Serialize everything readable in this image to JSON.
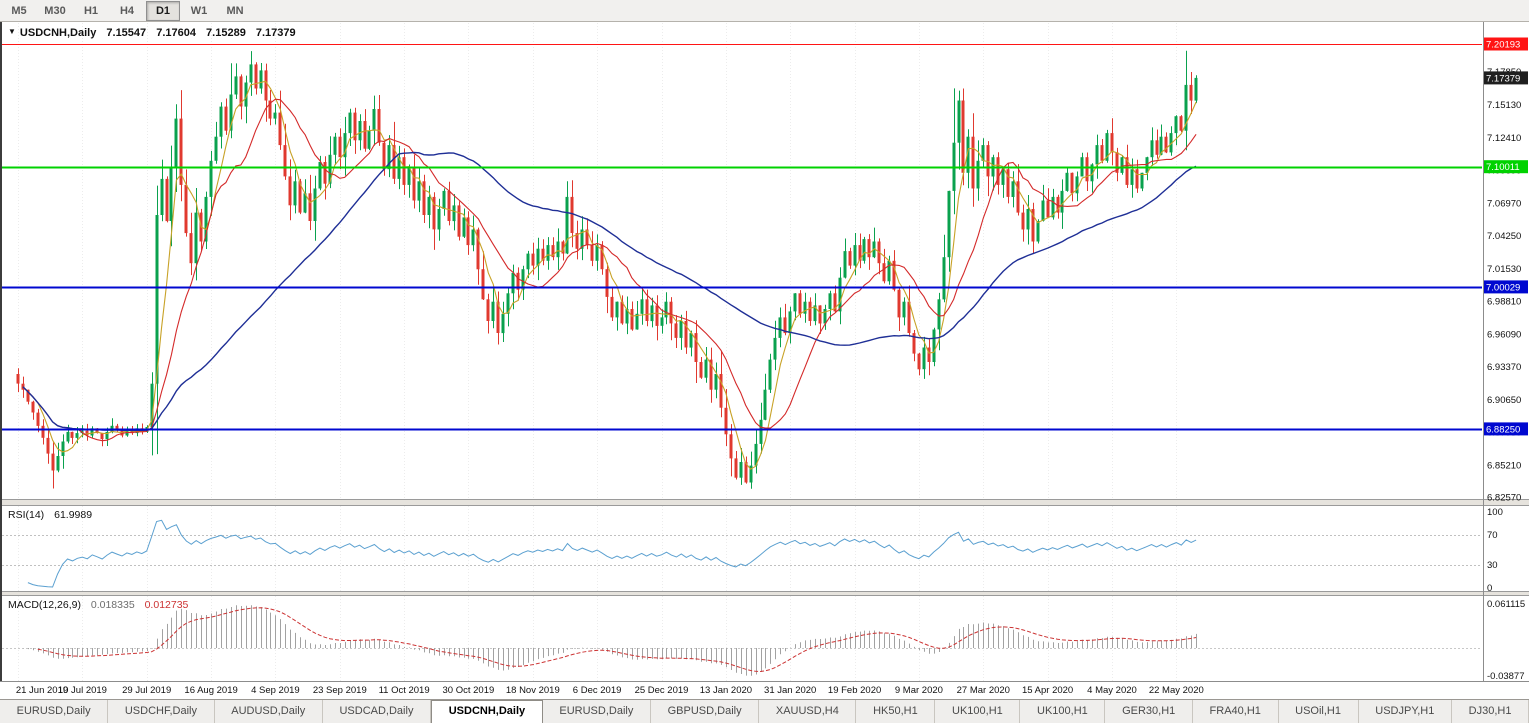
{
  "toolbar": {
    "timeframes": [
      "M5",
      "M30",
      "H1",
      "H4",
      "D1",
      "W1",
      "MN"
    ],
    "active": "D1"
  },
  "chart": {
    "symbol_period": "USDCNH,Daily",
    "ohlc": {
      "open": "7.15547",
      "high": "7.17604",
      "low": "7.15289",
      "close": "7.17379"
    }
  },
  "rsi": {
    "title": "RSI(14)",
    "value": "61.9989"
  },
  "macd": {
    "title": "MACD(12,26,9)",
    "value_macd": "0.018335",
    "value_signal": "0.012735"
  },
  "tabs": [
    {
      "label": "EURUSD,Daily"
    },
    {
      "label": "USDCHF,Daily"
    },
    {
      "label": "AUDUSD,Daily"
    },
    {
      "label": "USDCAD,Daily"
    },
    {
      "label": "USDCNH,Daily",
      "active": true
    },
    {
      "label": "EURUSD,Daily"
    },
    {
      "label": "GBPUSD,Daily"
    },
    {
      "label": "XAUUSD,H4"
    },
    {
      "label": "HK50,H1"
    },
    {
      "label": "UK100,H1"
    },
    {
      "label": "UK100,H1"
    },
    {
      "label": "GER30,H1"
    },
    {
      "label": "FRA40,H1"
    },
    {
      "label": "USOil,H1"
    },
    {
      "label": "USDJPY,H1"
    },
    {
      "label": "DJ30,H1"
    }
  ],
  "colors": {
    "candle_up": "#0aa14e",
    "candle_down": "#e0392f",
    "hline_red": "#ff1414",
    "hline_green": "#00d200",
    "hline_blue": "#0008d0",
    "current_price_bg": "#1f1f1f",
    "rsi_line": "#5ba0d0",
    "macd_histogram": "#a2a2a2",
    "macd_signal": "#cc3333",
    "ma_fast": "#c8a227",
    "ma_mid": "#d42a2a",
    "ma_slow": "#1f2f96"
  },
  "chart_data": {
    "type": "candlestick",
    "symbol": "USDCNH",
    "timeframe": "Daily",
    "current_bar": {
      "open": 7.15547,
      "high": 7.17604,
      "low": 7.15289,
      "close": 7.17379
    },
    "x_labels": [
      "21 Jun 2019",
      "10 Jul 2019",
      "29 Jul 2019",
      "16 Aug 2019",
      "4 Sep 2019",
      "23 Sep 2019",
      "11 Oct 2019",
      "30 Oct 2019",
      "18 Nov 2019",
      "6 Dec 2019",
      "25 Dec 2019",
      "13 Jan 2020",
      "31 Jan 2020",
      "19 Feb 2020",
      "9 Mar 2020",
      "27 Mar 2020",
      "15 Apr 2020",
      "4 May 2020",
      "22 May 2020"
    ],
    "x_label_step": 13,
    "y_labels": [
      "7.17850",
      "7.15130",
      "7.12410",
      "7.09690",
      "7.06970",
      "7.04250",
      "7.01530",
      "6.98810",
      "6.96090",
      "6.93370",
      "6.90650",
      "6.87930",
      "6.85210",
      "6.82570"
    ],
    "hlines": [
      {
        "price": 7.20193,
        "label": "7.20193",
        "color": "#ff1414",
        "width": 1
      },
      {
        "price": 7.10011,
        "label": "7.10011",
        "color": "#00d200",
        "width": 2
      },
      {
        "price": 7.00029,
        "label": "7.00029",
        "color": "#0008d0",
        "width": 2
      },
      {
        "price": 6.8825,
        "label": "6.88250",
        "color": "#0008d0",
        "width": 2
      }
    ],
    "current_price": {
      "price": 7.17379,
      "label": "7.17379"
    },
    "open_first": 6.928,
    "closes": [
      6.92,
      6.915,
      6.905,
      6.896,
      6.885,
      6.875,
      6.862,
      6.848,
      6.86,
      6.872,
      6.88,
      6.875,
      6.879,
      6.881,
      6.877,
      6.883,
      6.879,
      6.874,
      6.88,
      6.885,
      6.881,
      6.877,
      6.882,
      6.879,
      6.883,
      6.88,
      6.884,
      6.92,
      7.06,
      7.09,
      7.055,
      7.1,
      7.14,
      7.085,
      7.045,
      7.02,
      7.062,
      7.038,
      7.075,
      7.105,
      7.125,
      7.15,
      7.13,
      7.16,
      7.175,
      7.15,
      7.17,
      7.185,
      7.165,
      7.18,
      7.155,
      7.14,
      7.145,
      7.118,
      7.092,
      7.068,
      7.088,
      7.062,
      7.078,
      7.055,
      7.082,
      7.104,
      7.086,
      7.11,
      7.125,
      7.108,
      7.128,
      7.145,
      7.122,
      7.138,
      7.115,
      7.13,
      7.148,
      7.12,
      7.098,
      7.118,
      7.09,
      7.108,
      7.085,
      7.1,
      7.072,
      7.088,
      7.06,
      7.075,
      7.048,
      7.065,
      7.08,
      7.055,
      7.068,
      7.042,
      7.058,
      7.035,
      7.048,
      7.015,
      6.99,
      6.972,
      6.988,
      6.962,
      6.978,
      6.995,
      7.012,
      6.998,
      7.015,
      7.028,
      7.018,
      7.032,
      7.022,
      7.035,
      7.025,
      7.038,
      7.028,
      7.075,
      7.045,
      7.032,
      7.048,
      7.035,
      7.022,
      7.035,
      7.015,
      6.992,
      6.975,
      6.988,
      6.97,
      6.982,
      6.965,
      6.978,
      6.99,
      6.972,
      6.985,
      6.968,
      6.975,
      6.988,
      6.97,
      6.958,
      6.972,
      6.95,
      6.962,
      6.938,
      6.925,
      6.94,
      6.915,
      6.928,
      6.9,
      6.878,
      6.858,
      6.842,
      6.855,
      6.838,
      6.852,
      6.87,
      6.89,
      6.915,
      6.94,
      6.958,
      6.975,
      6.962,
      6.98,
      6.995,
      6.978,
      6.988,
      6.972,
      6.985,
      6.97,
      6.982,
      6.995,
      6.98,
      7.008,
      7.03,
      7.018,
      7.035,
      7.022,
      7.04,
      7.025,
      7.038,
      7.02,
      7.005,
      7.022,
      6.998,
      6.975,
      6.988,
      6.962,
      6.945,
      6.932,
      6.95,
      6.938,
      6.965,
      6.99,
      7.025,
      7.08,
      7.12,
      7.155,
      7.095,
      7.125,
      7.082,
      7.105,
      7.118,
      7.092,
      7.108,
      7.085,
      7.098,
      7.075,
      7.088,
      7.062,
      7.048,
      7.065,
      7.038,
      7.055,
      7.072,
      7.058,
      7.075,
      7.062,
      7.08,
      7.095,
      7.078,
      7.092,
      7.108,
      7.088,
      7.102,
      7.118,
      7.105,
      7.128,
      7.112,
      7.095,
      7.108,
      7.085,
      7.098,
      7.082,
      7.095,
      7.108,
      7.122,
      7.11,
      7.125,
      7.112,
      7.128,
      7.142,
      7.13,
      7.168,
      7.155,
      7.1738
    ],
    "high_overrides": {
      "32": 7.152,
      "43": 7.186,
      "47": 7.196,
      "111": 7.088,
      "189": 7.1651,
      "236": 7.1964,
      "238": 7.17604
    },
    "low_overrides": {
      "7": 6.833,
      "146": 6.836,
      "238": 7.15289
    },
    "moving_averages": [
      {
        "period": 5,
        "color": "#c8a227"
      },
      {
        "period": 13,
        "color": "#d42a2a"
      },
      {
        "period": 50,
        "color": "#1f2f96"
      }
    ],
    "rsi": {
      "period": 14,
      "current": 61.9989,
      "scale": [
        100,
        70,
        30,
        0
      ],
      "levels": [
        70,
        30
      ]
    },
    "macd": {
      "fast": 12,
      "slow": 26,
      "signal": 9,
      "current_macd": 0.018335,
      "current_signal": 0.012735,
      "scale_labels": [
        "0.061115",
        "-0.03877"
      ],
      "scale_values": [
        0.061115,
        -0.03877
      ]
    }
  }
}
